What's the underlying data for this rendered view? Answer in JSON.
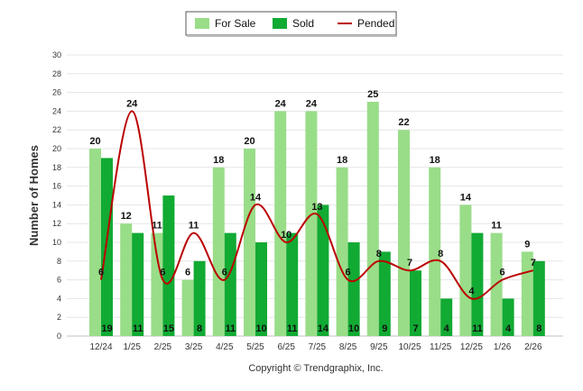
{
  "chart_data": {
    "type": "bar",
    "categories": [
      "12/24",
      "1/25",
      "2/25",
      "3/25",
      "4/25",
      "5/25",
      "6/25",
      "7/25",
      "8/25",
      "9/25",
      "10/25",
      "11/25",
      "12/25",
      "1/26",
      "2/26"
    ],
    "series": [
      {
        "name": "For Sale",
        "kind": "bar",
        "color": "#99dd88",
        "values": [
          20,
          12,
          11,
          6,
          18,
          20,
          24,
          24,
          18,
          25,
          22,
          18,
          14,
          11,
          9
        ]
      },
      {
        "name": "Sold",
        "kind": "bar",
        "color": "#11aa33",
        "values": [
          19,
          11,
          15,
          8,
          11,
          10,
          11,
          14,
          10,
          9,
          7,
          4,
          11,
          4,
          8
        ]
      },
      {
        "name": "Pended",
        "kind": "line",
        "color": "#bb0000",
        "values": [
          6,
          24,
          6,
          11,
          6,
          14,
          10,
          13,
          6,
          8,
          7,
          8,
          4,
          6,
          7
        ]
      }
    ],
    "ylabel": "Number of Homes",
    "ylim": [
      0,
      30
    ],
    "yticks": [
      0,
      2,
      4,
      6,
      8,
      10,
      12,
      14,
      16,
      18,
      20,
      22,
      24,
      26,
      28,
      30
    ],
    "grid": true,
    "legend": "top-center",
    "credit": "Copyright © Trendgraphix, Inc."
  }
}
